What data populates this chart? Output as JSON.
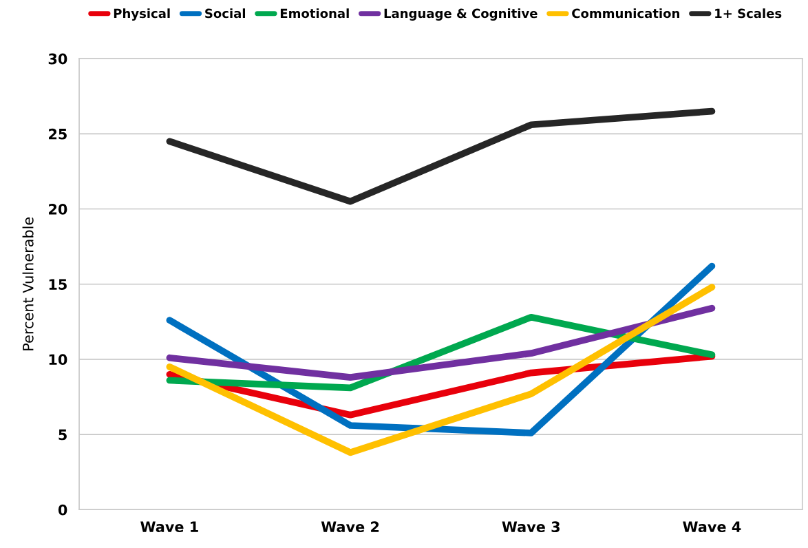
{
  "chart_data": {
    "type": "line",
    "ylabel": "Percent Vulnerable",
    "categories": [
      "Wave 1",
      "Wave 2",
      "Wave 3",
      "Wave 4"
    ],
    "series": [
      {
        "name": "Physical",
        "color": "#e8000b",
        "values": [
          9.0,
          6.3,
          9.1,
          10.2
        ]
      },
      {
        "name": "Social",
        "color": "#0070c0",
        "values": [
          12.6,
          5.6,
          5.1,
          16.2
        ]
      },
      {
        "name": "Emotional",
        "color": "#00a84f",
        "values": [
          8.6,
          8.1,
          12.8,
          10.3
        ]
      },
      {
        "name": "Language & Cognitive",
        "color": "#7030a0",
        "values": [
          10.1,
          8.8,
          10.4,
          13.4
        ]
      },
      {
        "name": "Communication",
        "color": "#ffc000",
        "values": [
          9.5,
          3.8,
          7.7,
          14.8
        ]
      },
      {
        "name": "1+ Scales",
        "color": "#262626",
        "values": [
          24.5,
          20.5,
          25.6,
          26.5
        ]
      }
    ],
    "ylim": [
      0,
      30
    ],
    "yticks": [
      0,
      5,
      10,
      15,
      20,
      25,
      30
    ],
    "grid": "y",
    "legend": "top",
    "marker": "none",
    "line_style": "solid"
  }
}
